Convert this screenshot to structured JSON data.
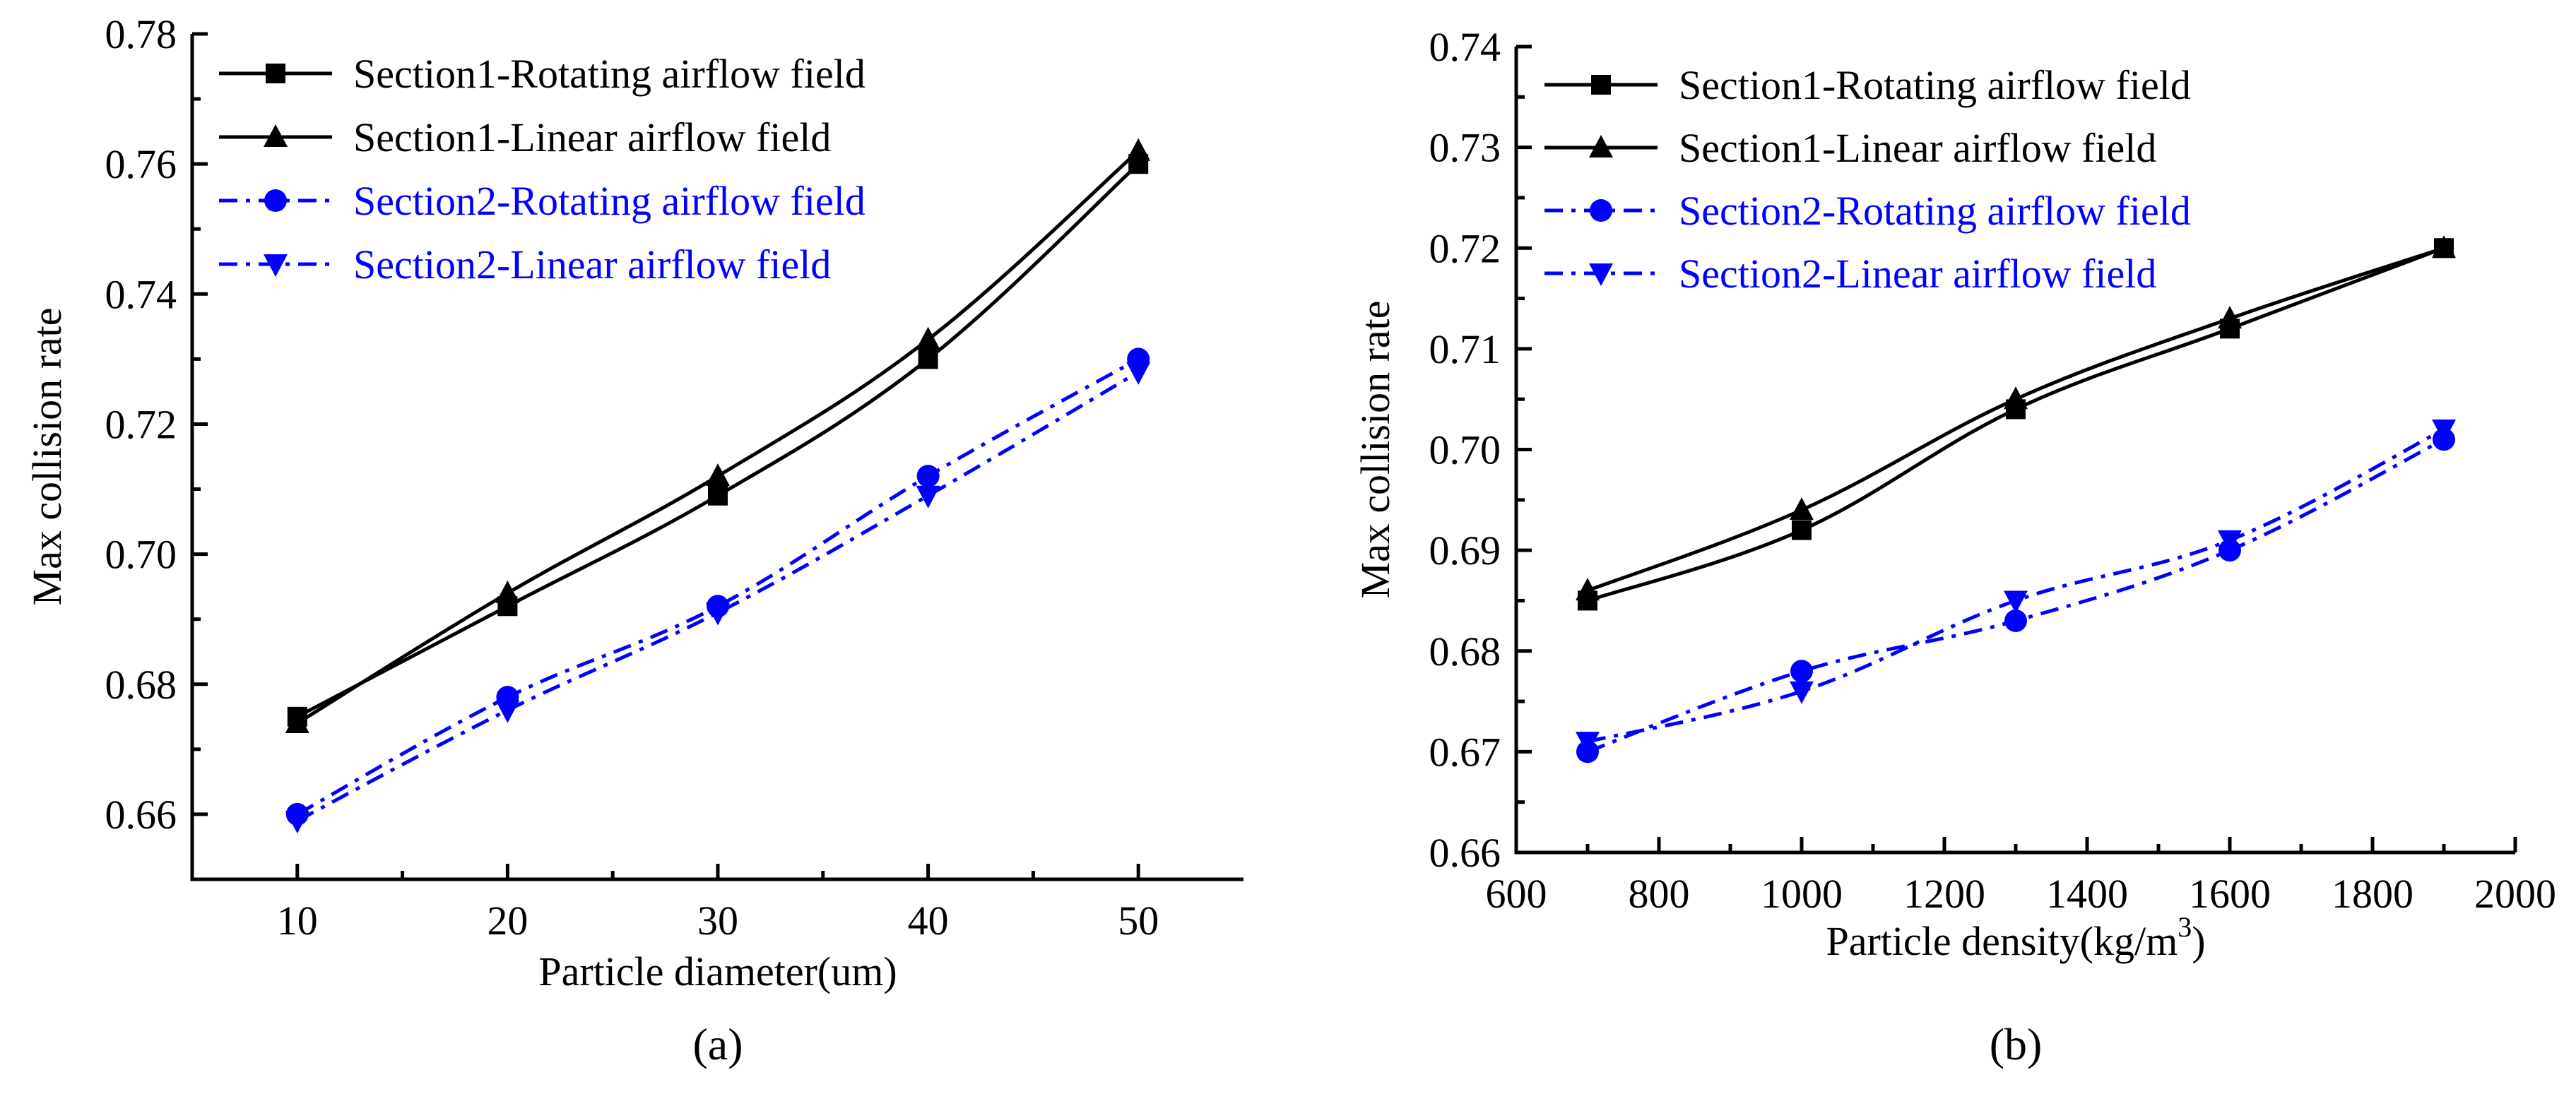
{
  "chart_data": [
    {
      "type": "line",
      "panel_label": "(a)",
      "xlabel": "Particle diameter(um)",
      "ylabel": "Max collision rate",
      "xlim": [
        5,
        55
      ],
      "ylim": [
        0.65,
        0.78
      ],
      "xticks": [
        10,
        20,
        30,
        40,
        50
      ],
      "xtick_labels": [
        "10",
        "20",
        "30",
        "40",
        "50"
      ],
      "yticks": [
        0.66,
        0.68,
        0.7,
        0.72,
        0.74,
        0.76,
        0.78
      ],
      "ytick_labels": [
        "0.66",
        "0.68",
        "0.70",
        "0.72",
        "0.74",
        "0.76",
        "0.78"
      ],
      "legend_position": "top-left",
      "series": [
        {
          "name": "Section1-Rotating airflow field",
          "color": "#000000",
          "marker": "square",
          "dash": "solid",
          "x": [
            10,
            20,
            30,
            40,
            50
          ],
          "values": [
            0.675,
            0.692,
            0.709,
            0.73,
            0.76
          ]
        },
        {
          "name": "Section1-Linear airflow field",
          "color": "#000000",
          "marker": "triangle-up",
          "dash": "solid",
          "x": [
            10,
            20,
            30,
            40,
            50
          ],
          "values": [
            0.674,
            0.694,
            0.712,
            0.733,
            0.762
          ]
        },
        {
          "name": "Section2-Rotating airflow field",
          "color": "#0000ff",
          "marker": "circle",
          "dash": "dashdot",
          "x": [
            10,
            20,
            30,
            40,
            50
          ],
          "values": [
            0.66,
            0.678,
            0.692,
            0.712,
            0.73
          ]
        },
        {
          "name": "Section2-Linear airflow field",
          "color": "#0000ff",
          "marker": "triangle-down",
          "dash": "dashdot",
          "x": [
            10,
            20,
            30,
            40,
            50
          ],
          "values": [
            0.659,
            0.676,
            0.691,
            0.709,
            0.728
          ]
        }
      ]
    },
    {
      "type": "line",
      "panel_label": "(b)",
      "xlabel": "Particle density(kg/m",
      "xlabel_superscript": "3",
      "xlabel_suffix": ")",
      "ylabel": "Max collision rate",
      "xlim": [
        600,
        2000
      ],
      "ylim": [
        0.66,
        0.74
      ],
      "xticks": [
        600,
        800,
        1000,
        1200,
        1400,
        1600,
        1800,
        2000
      ],
      "xtick_labels": [
        "600",
        "800",
        "1000",
        "1200",
        "1400",
        "1600",
        "1800",
        "2000"
      ],
      "yticks": [
        0.66,
        0.67,
        0.68,
        0.69,
        0.7,
        0.71,
        0.72,
        0.73,
        0.74
      ],
      "ytick_labels": [
        "0.66",
        "0.67",
        "0.68",
        "0.69",
        "0.70",
        "0.71",
        "0.72",
        "0.73",
        "0.74"
      ],
      "legend_position": "top-left",
      "series": [
        {
          "name": "Section1-Rotating airflow field",
          "color": "#000000",
          "marker": "square",
          "dash": "solid",
          "x": [
            700,
            1000,
            1300,
            1600,
            1900
          ],
          "values": [
            0.685,
            0.692,
            0.704,
            0.712,
            0.72
          ]
        },
        {
          "name": "Section1-Linear airflow field",
          "color": "#000000",
          "marker": "triangle-up",
          "dash": "solid",
          "x": [
            700,
            1000,
            1300,
            1600,
            1900
          ],
          "values": [
            0.686,
            0.694,
            0.705,
            0.713,
            0.72
          ]
        },
        {
          "name": "Section2-Rotating airflow field",
          "color": "#0000ff",
          "marker": "circle",
          "dash": "dashdot",
          "x": [
            700,
            1000,
            1300,
            1600,
            1900
          ],
          "values": [
            0.67,
            0.678,
            0.683,
            0.69,
            0.701
          ]
        },
        {
          "name": "Section2-Linear airflow field",
          "color": "#0000ff",
          "marker": "triangle-down",
          "dash": "dashdot",
          "x": [
            700,
            1000,
            1300,
            1600,
            1900
          ],
          "values": [
            0.671,
            0.676,
            0.685,
            0.691,
            0.702
          ]
        }
      ]
    }
  ]
}
